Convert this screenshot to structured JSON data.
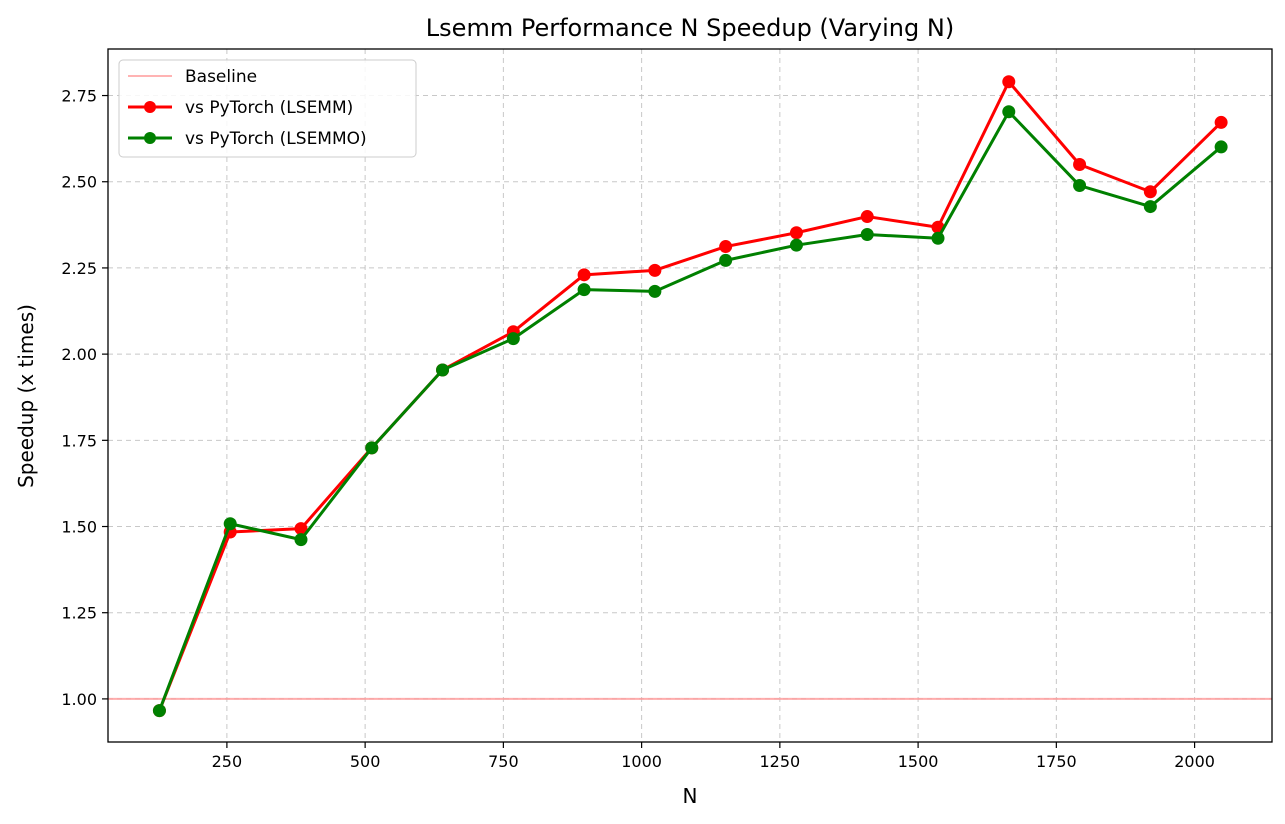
{
  "chart_data": {
    "type": "line",
    "title": "Lsemm Performance N Speedup (Varying N)",
    "xlabel": "N",
    "ylabel": "Speedup (x times)",
    "xlim": [
      35,
      2140
    ],
    "ylim": [
      0.875,
      2.885
    ],
    "xticks": [
      250,
      500,
      750,
      1000,
      1250,
      1500,
      1750,
      2000
    ],
    "yticks": [
      1.0,
      1.25,
      1.5,
      1.75,
      2.0,
      2.25,
      2.5,
      2.75
    ],
    "grid": true,
    "legend_position": "top-left",
    "baseline": {
      "name": "Baseline",
      "y": 1.0,
      "color": "#ff9999"
    },
    "x": [
      128,
      256,
      384,
      512,
      640,
      768,
      896,
      1024,
      1152,
      1280,
      1408,
      1536,
      1664,
      1792,
      1920,
      2048
    ],
    "series": [
      {
        "name": "vs PyTorch (LSEMM)",
        "color": "#ff0000",
        "values": [
          0.966,
          1.484,
          1.494,
          1.728,
          1.954,
          2.065,
          2.23,
          2.243,
          2.312,
          2.352,
          2.399,
          2.368,
          2.79,
          2.55,
          2.471,
          2.672
        ]
      },
      {
        "name": "vs PyTorch (LSEMMO)",
        "color": "#008000",
        "values": [
          0.966,
          1.508,
          1.462,
          1.728,
          1.954,
          2.045,
          2.187,
          2.182,
          2.272,
          2.316,
          2.347,
          2.336,
          2.703,
          2.489,
          2.428,
          2.601
        ]
      }
    ]
  }
}
